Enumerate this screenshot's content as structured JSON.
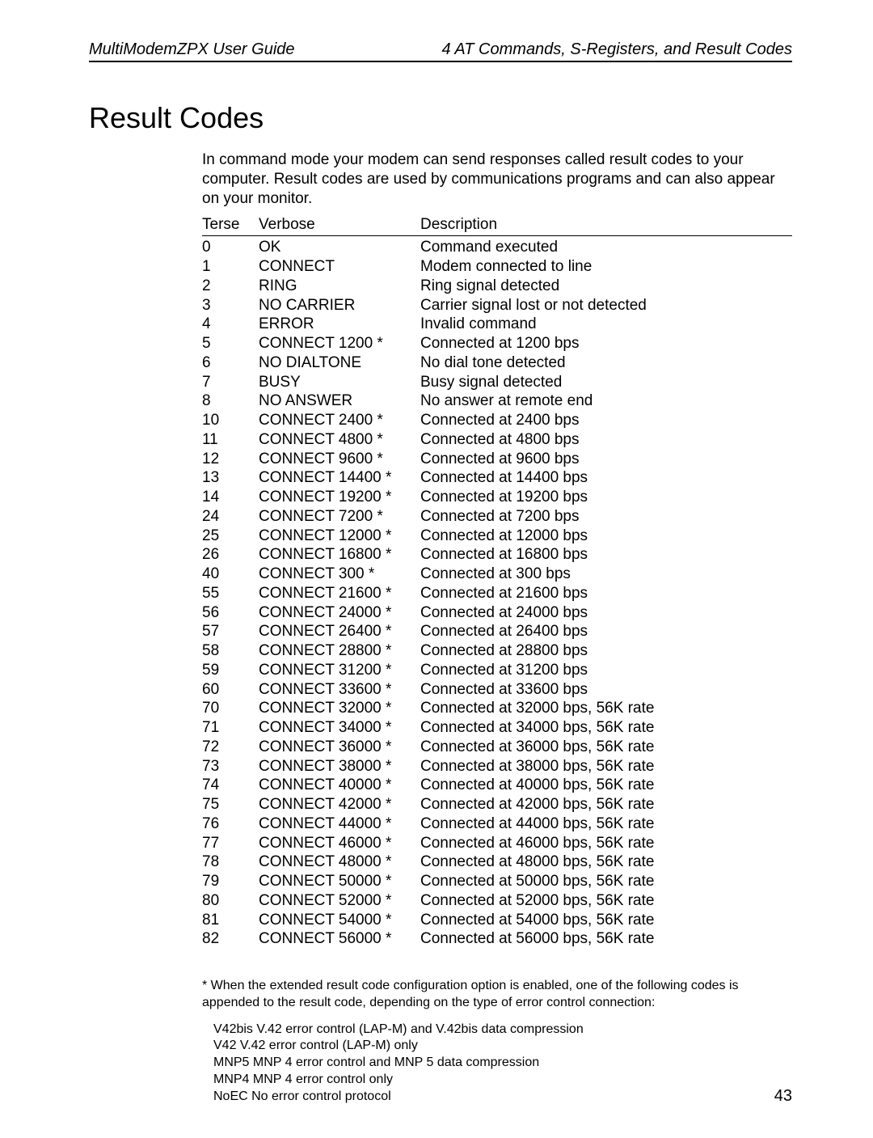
{
  "header": {
    "left": "MultiModemZPX User Guide",
    "right": "4   AT Commands, S-Registers, and Result Codes"
  },
  "title": "Result Codes",
  "intro": "In command mode your modem can send responses called result codes to your computer. Result codes are used by communications programs and can also appear on your monitor.",
  "table": {
    "columns": [
      "Terse",
      "Verbose",
      "Description"
    ],
    "rows": [
      [
        "0",
        "OK",
        "Command executed"
      ],
      [
        "1",
        "CONNECT",
        "Modem connected to line"
      ],
      [
        "2",
        "RING",
        "Ring signal detected"
      ],
      [
        "3",
        "NO CARRIER",
        "Carrier signal lost or not detected"
      ],
      [
        "4",
        "ERROR",
        "Invalid command"
      ],
      [
        "5",
        "CONNECT 1200 *",
        "Connected at 1200 bps"
      ],
      [
        "6",
        "NO DIALTONE",
        "No dial tone detected"
      ],
      [
        "7",
        "BUSY",
        "Busy signal detected"
      ],
      [
        "8",
        "NO ANSWER",
        "No answer at remote end"
      ],
      [
        "10",
        "CONNECT 2400 *",
        "Connected at 2400 bps"
      ],
      [
        "11",
        "CONNECT 4800 *",
        "Connected at 4800 bps"
      ],
      [
        "12",
        "CONNECT 9600 *",
        "Connected at 9600 bps"
      ],
      [
        "13",
        "CONNECT 14400 *",
        "Connected at 14400 bps"
      ],
      [
        "14",
        "CONNECT 19200 *",
        "Connected at 19200 bps"
      ],
      [
        "24",
        "CONNECT 7200 *",
        "Connected at 7200 bps"
      ],
      [
        "25",
        "CONNECT 12000 *",
        "Connected at 12000 bps"
      ],
      [
        "26",
        "CONNECT 16800 *",
        "Connected at 16800 bps"
      ],
      [
        "40",
        "CONNECT 300 *",
        "Connected at 300 bps"
      ],
      [
        "55",
        "CONNECT 21600 *",
        "Connected at 21600 bps"
      ],
      [
        "56",
        "CONNECT 24000 *",
        "Connected at 24000 bps"
      ],
      [
        "57",
        "CONNECT 26400 *",
        "Connected at 26400 bps"
      ],
      [
        "58",
        "CONNECT 28800 *",
        "Connected at 28800 bps"
      ],
      [
        "59",
        "CONNECT 31200 *",
        "Connected at 31200 bps"
      ],
      [
        "60",
        "CONNECT 33600 *",
        "Connected at 33600 bps"
      ],
      [
        "70",
        "CONNECT 32000 *",
        "Connected at 32000 bps, 56K rate"
      ],
      [
        "71",
        "CONNECT 34000 *",
        "Connected at 34000 bps, 56K rate"
      ],
      [
        "72",
        "CONNECT 36000 *",
        "Connected at 36000 bps, 56K rate"
      ],
      [
        "73",
        "CONNECT 38000 *",
        "Connected at 38000 bps, 56K rate"
      ],
      [
        "74",
        "CONNECT 40000 *",
        "Connected at 40000 bps, 56K rate"
      ],
      [
        "75",
        "CONNECT 42000 *",
        "Connected at 42000 bps, 56K rate"
      ],
      [
        "76",
        "CONNECT 44000 *",
        "Connected at 44000 bps, 56K rate"
      ],
      [
        "77",
        "CONNECT 46000 *",
        "Connected at 46000 bps, 56K rate"
      ],
      [
        "78",
        "CONNECT 48000 *",
        "Connected at 48000 bps, 56K rate"
      ],
      [
        "79",
        "CONNECT 50000 *",
        "Connected at 50000 bps, 56K rate"
      ],
      [
        "80",
        "CONNECT 52000 *",
        "Connected at 52000 bps, 56K rate"
      ],
      [
        "81",
        "CONNECT 54000 *",
        "Connected at 54000 bps, 56K rate"
      ],
      [
        "82",
        "CONNECT 56000 *",
        "Connected at 56000 bps, 56K rate"
      ]
    ]
  },
  "footnote": {
    "intro": "*  When the extended result code configuration option is enabled, one of the following codes is appended to the result code, depending on the type of error control connection:",
    "items": [
      "V42bis   V.42 error control (LAP-M) and V.42bis data compression",
      "V42   V.42 error control (LAP-M) only",
      "MNP5   MNP 4 error control and MNP 5 data compression",
      "MNP4   MNP 4 error control only",
      "NoEC   No error control protocol"
    ]
  },
  "page_number": "43"
}
